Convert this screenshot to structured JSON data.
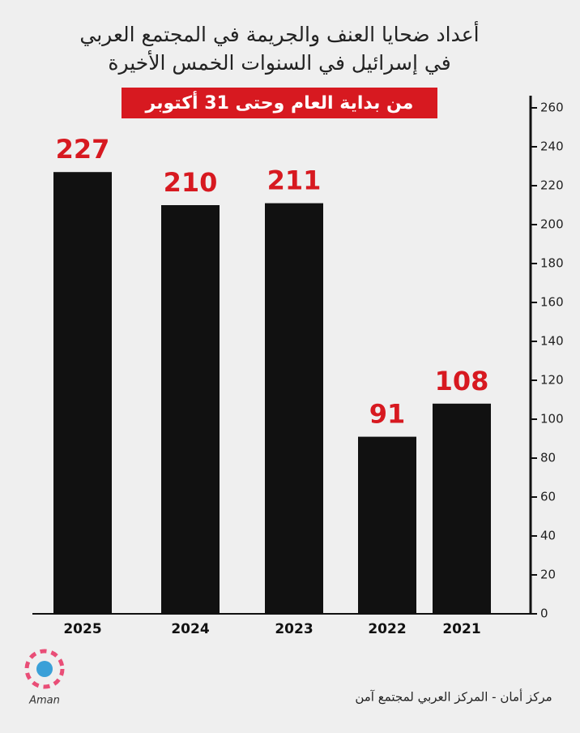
{
  "chart_data": {
    "type": "bar",
    "title": "أعداد ضحايا العنف والجريمة في المجتمع العربي",
    "subtitle": "في إسرائيل في السنوات الخمس الأخيرة",
    "period": "من بداية العام وحتى 31 أكتوبر",
    "categories": [
      "2025",
      "2024",
      "2023",
      "2022",
      "2021"
    ],
    "values": [
      227,
      210,
      211,
      91,
      108
    ],
    "color": "#111111",
    "label_color": "#d71920",
    "ylim": [
      0,
      260
    ],
    "yticks": [
      0,
      20,
      40,
      60,
      80,
      100,
      120,
      140,
      160,
      180,
      200,
      220,
      240,
      260
    ],
    "y_axis_side": "right",
    "grid": false
  },
  "footer": {
    "logo": "Aman",
    "source": "مركز أمان  - المركز العربي لمجتمع آمن"
  }
}
